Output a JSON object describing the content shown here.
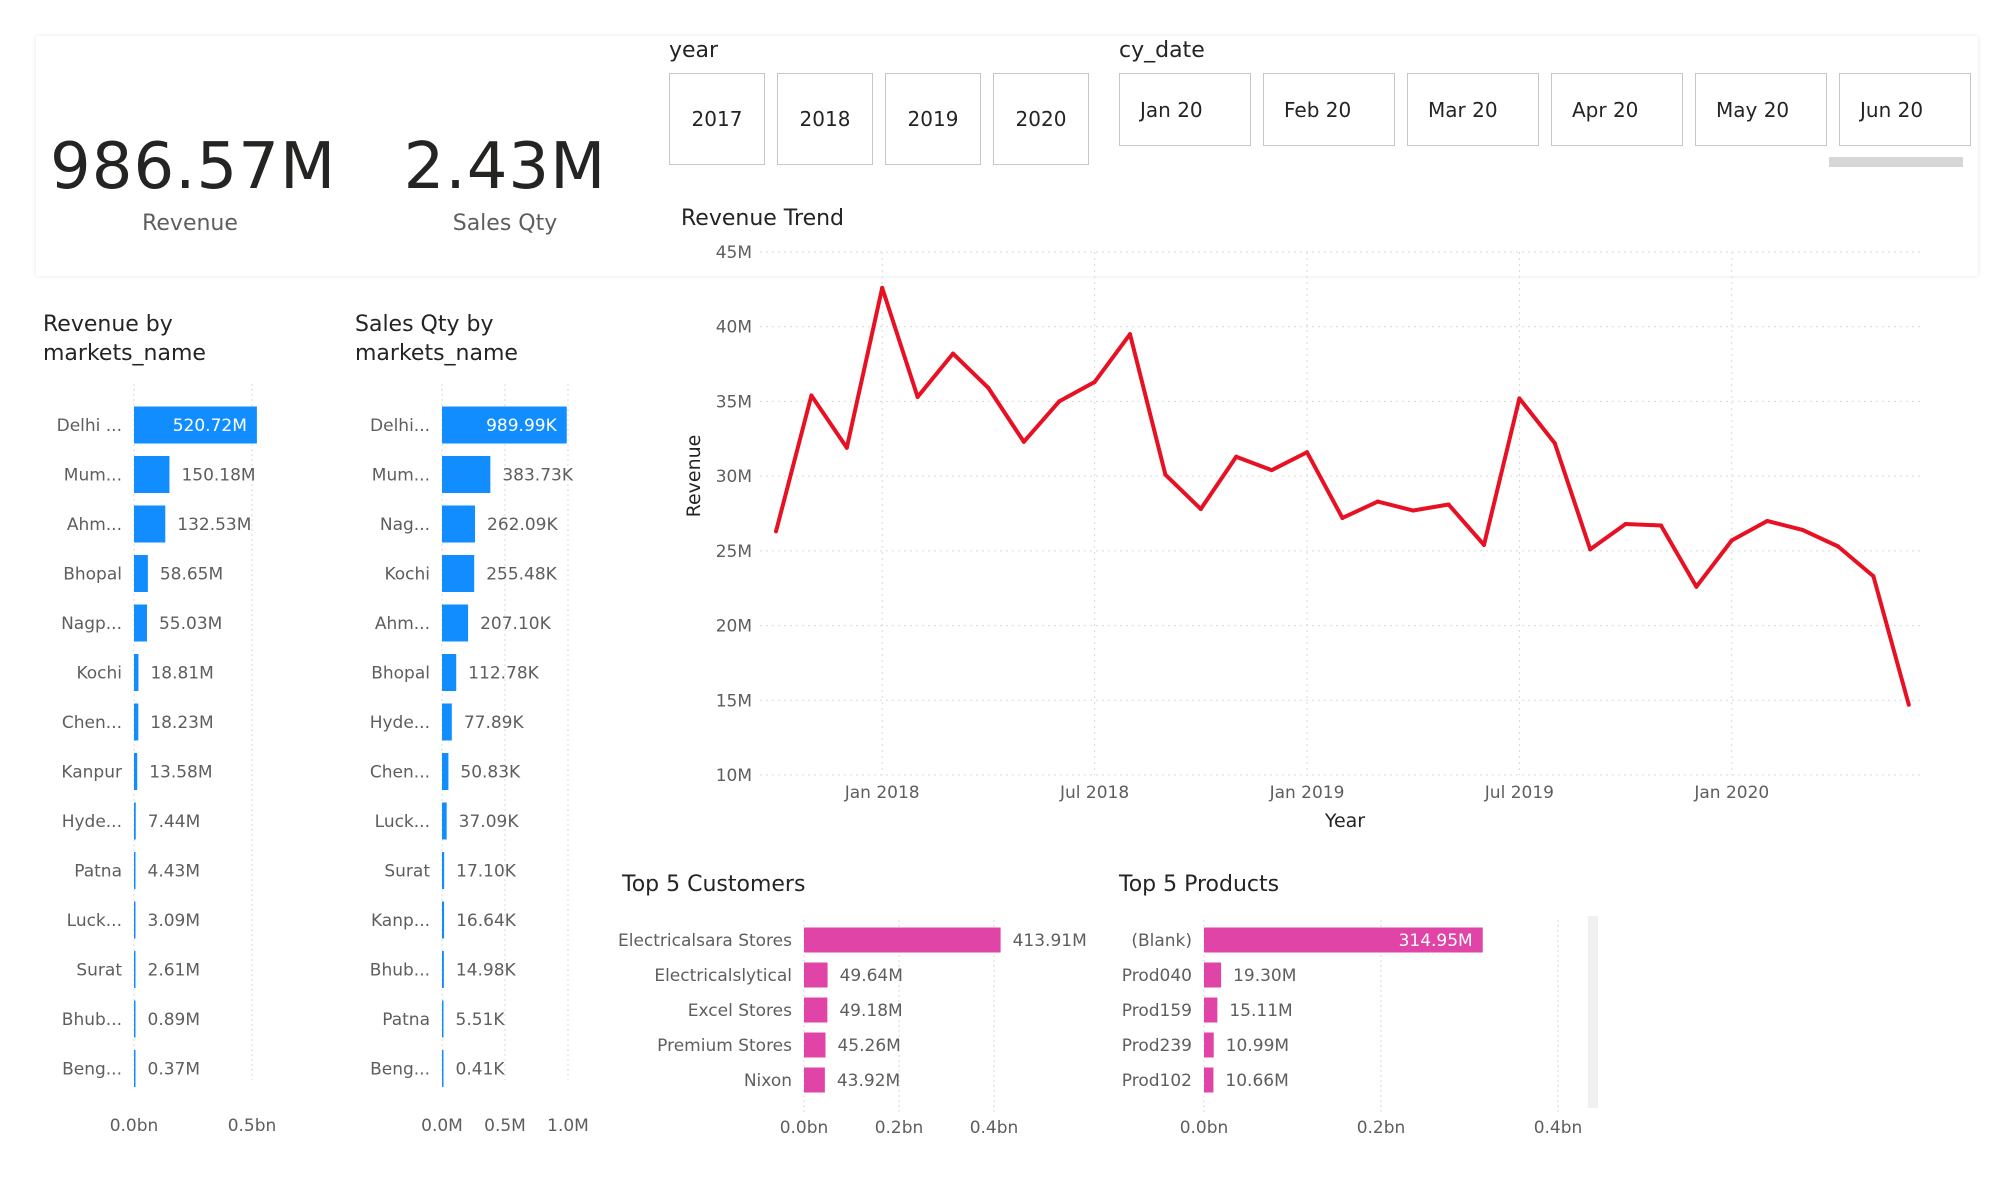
{
  "kpis": {
    "revenue": {
      "value": "986.57M",
      "label": "Revenue"
    },
    "sales_qty": {
      "value": "2.43M",
      "label": "Sales Qty"
    }
  },
  "year_slicer": {
    "title": "year",
    "options": [
      "2017",
      "2018",
      "2019",
      "2020"
    ]
  },
  "date_slicer": {
    "title": "cy_date",
    "options": [
      "Jan 20",
      "Feb 20",
      "Mar 20",
      "Apr 20",
      "May 20",
      "Jun 20"
    ]
  },
  "charts": {
    "revenue_by_market": {
      "title_line1": "Revenue by",
      "title_line2": "markets_name"
    },
    "qty_by_market": {
      "title_line1": "Sales Qty by",
      "title_line2": "markets_name"
    },
    "revenue_trend": {
      "title": "Revenue Trend"
    },
    "top_customers": {
      "title": "Top 5 Customers"
    },
    "top_products": {
      "title": "Top 5 Products"
    }
  },
  "colors": {
    "blue_bar": "#118dff",
    "line": "#e81123",
    "pink_bar": "#e044a7",
    "grid": "#d9d9d9",
    "text_muted": "#605e5c"
  },
  "chart_data": [
    {
      "id": "revenue_by_market",
      "type": "bar",
      "orientation": "horizontal",
      "categories": [
        "Delhi ...",
        "Mum...",
        "Ahm...",
        "Bhopal",
        "Nagp...",
        "Kochi",
        "Chen...",
        "Kanpur",
        "Hyde...",
        "Patna",
        "Luck...",
        "Surat",
        "Bhub...",
        "Beng..."
      ],
      "values": [
        520.72,
        150.18,
        132.53,
        58.65,
        55.03,
        18.81,
        18.23,
        13.58,
        7.44,
        4.43,
        3.09,
        2.61,
        0.89,
        0.37
      ],
      "labels": [
        "520.72M",
        "150.18M",
        "132.53M",
        "58.65M",
        "55.03M",
        "18.81M",
        "18.23M",
        "13.58M",
        "7.44M",
        "4.43M",
        "3.09M",
        "2.61M",
        "0.89M",
        "0.37M"
      ],
      "unit": "M",
      "xlim": [
        0,
        500
      ],
      "xticks": [
        {
          "v": 0,
          "label": "0.0bn"
        },
        {
          "v": 500,
          "label": "0.5bn"
        }
      ]
    },
    {
      "id": "qty_by_market",
      "type": "bar",
      "orientation": "horizontal",
      "categories": [
        "Delhi...",
        "Mum...",
        "Nag...",
        "Kochi",
        "Ahm...",
        "Bhopal",
        "Hyde...",
        "Chen...",
        "Luck...",
        "Surat",
        "Kanp...",
        "Bhub...",
        "Patna",
        "Beng..."
      ],
      "values": [
        989.99,
        383.73,
        262.09,
        255.48,
        207.1,
        112.78,
        77.89,
        50.83,
        37.09,
        17.1,
        16.64,
        14.98,
        5.51,
        0.41
      ],
      "labels": [
        "989.99K",
        "383.73K",
        "262.09K",
        "255.48K",
        "207.10K",
        "112.78K",
        "77.89K",
        "50.83K",
        "37.09K",
        "17.10K",
        "16.64K",
        "14.98K",
        "5.51K",
        "0.41K"
      ],
      "unit": "K",
      "xlim": [
        0,
        1000
      ],
      "xticks": [
        {
          "v": 0,
          "label": "0.0M"
        },
        {
          "v": 500,
          "label": "0.5M"
        },
        {
          "v": 1000,
          "label": "1.0M"
        }
      ]
    },
    {
      "id": "revenue_trend",
      "type": "line",
      "xlabel": "Year",
      "ylabel": "Revenue",
      "ylim": [
        10,
        45
      ],
      "yticks": [
        {
          "v": 10,
          "label": "10M"
        },
        {
          "v": 15,
          "label": "15M"
        },
        {
          "v": 20,
          "label": "20M"
        },
        {
          "v": 25,
          "label": "25M"
        },
        {
          "v": 30,
          "label": "30M"
        },
        {
          "v": 35,
          "label": "35M"
        },
        {
          "v": 40,
          "label": "40M"
        },
        {
          "v": 45,
          "label": "45M"
        }
      ],
      "xticks": [
        {
          "m": 3,
          "label": "Jan 2018"
        },
        {
          "m": 9,
          "label": "Jul 2018"
        },
        {
          "m": 15,
          "label": "Jan 2019"
        },
        {
          "m": 21,
          "label": "Jul 2019"
        },
        {
          "m": 27,
          "label": "Jan 2020"
        }
      ],
      "x": [
        "Oct 2017",
        "Nov 2017",
        "Dec 2017",
        "Jan 2018",
        "Feb 2018",
        "Mar 2018",
        "Apr 2018",
        "May 2018",
        "Jun 2018",
        "Jul 2018",
        "Aug 2018",
        "Sep 2018",
        "Oct 2018",
        "Nov 2018",
        "Dec 2018",
        "Jan 2019",
        "Feb 2019",
        "Mar 2019",
        "Apr 2019",
        "May 2019",
        "Jun 2019",
        "Jul 2019",
        "Aug 2019",
        "Sep 2019",
        "Oct 2019",
        "Nov 2019",
        "Dec 2019",
        "Jan 2020",
        "Feb 2020",
        "Mar 2020",
        "Apr 2020",
        "May 2020",
        "Jun 2020"
      ],
      "values": [
        26.3,
        35.4,
        31.9,
        42.6,
        35.3,
        38.2,
        35.9,
        32.3,
        35.0,
        36.3,
        39.5,
        30.1,
        27.8,
        31.3,
        30.4,
        31.6,
        27.2,
        28.3,
        27.7,
        28.1,
        25.4,
        35.2,
        32.2,
        25.1,
        26.8,
        26.7,
        22.6,
        25.7,
        27.0,
        26.4,
        25.3,
        23.3,
        14.7
      ]
    },
    {
      "id": "top_customers",
      "type": "bar",
      "orientation": "horizontal",
      "categories": [
        "Electricalsara Stores",
        "Electricalslytical",
        "Excel Stores",
        "Premium Stores",
        "Nixon"
      ],
      "values": [
        413.91,
        49.64,
        49.18,
        45.26,
        43.92
      ],
      "labels": [
        "413.91M",
        "49.64M",
        "49.18M",
        "45.26M",
        "43.92M"
      ],
      "unit": "M",
      "xlim": [
        0,
        400
      ],
      "xticks": [
        {
          "v": 0,
          "label": "0.0bn"
        },
        {
          "v": 200,
          "label": "0.2bn"
        },
        {
          "v": 400,
          "label": "0.4bn"
        }
      ]
    },
    {
      "id": "top_products",
      "type": "bar",
      "orientation": "horizontal",
      "categories": [
        "(Blank)",
        "Prod040",
        "Prod159",
        "Prod239",
        "Prod102"
      ],
      "values": [
        314.95,
        19.3,
        15.11,
        10.99,
        10.66
      ],
      "labels": [
        "314.95M",
        "19.30M",
        "15.11M",
        "10.99M",
        "10.66M"
      ],
      "unit": "M",
      "xlim": [
        0,
        400
      ],
      "xticks": [
        {
          "v": 0,
          "label": "0.0bn"
        },
        {
          "v": 200,
          "label": "0.2bn"
        },
        {
          "v": 400,
          "label": "0.4bn"
        }
      ]
    }
  ]
}
